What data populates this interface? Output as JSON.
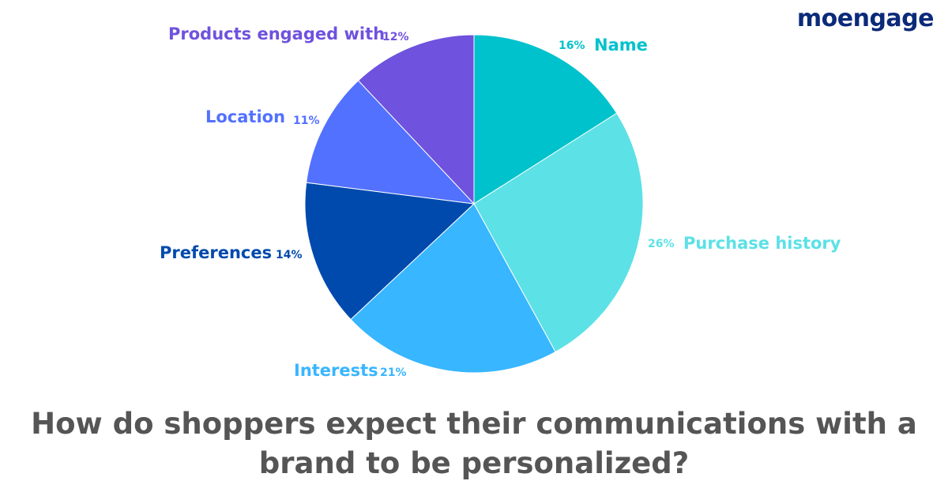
{
  "logo": "moengage",
  "chart_data": {
    "type": "pie",
    "title": "How do shoppers expect their communications with a brand to be personalized?",
    "start_angle": "top",
    "direction": "clockwise",
    "slices": [
      {
        "label": "Name",
        "value": 16,
        "pct_label": "16%",
        "color": "#00C2CC"
      },
      {
        "label": "Purchase history",
        "value": 26,
        "pct_label": "26%",
        "color": "#5CE1E6"
      },
      {
        "label": "Interests",
        "value": 21,
        "pct_label": "21%",
        "color": "#38B6FF"
      },
      {
        "label": "Preferences",
        "value": 14,
        "pct_label": "14%",
        "color": "#004AAD"
      },
      {
        "label": "Location",
        "value": 11,
        "pct_label": "11%",
        "color": "#5271FF"
      },
      {
        "label": "Products engaged with",
        "value": 12,
        "pct_label": "12%",
        "color": "#6F52DD"
      }
    ]
  }
}
